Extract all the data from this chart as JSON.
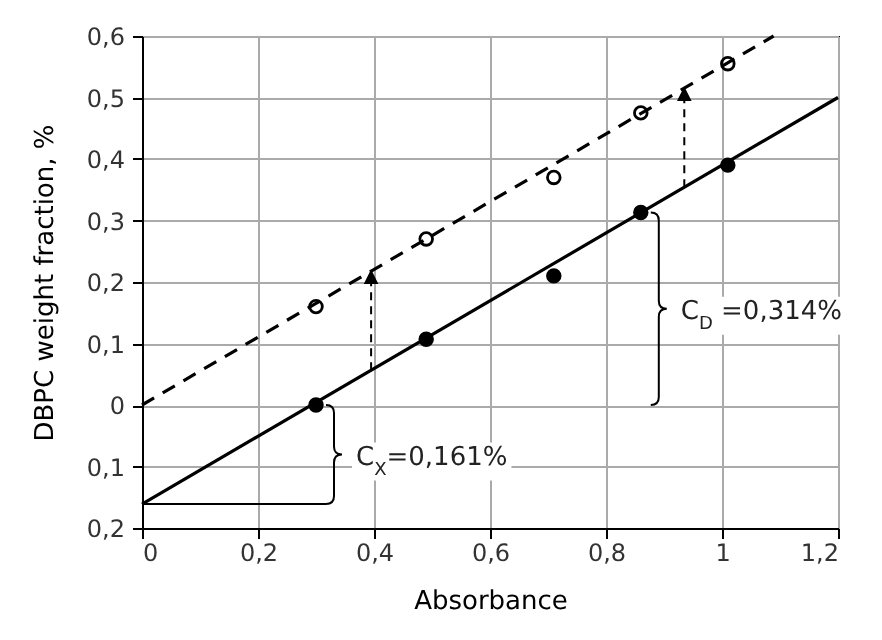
{
  "chart_data": {
    "type": "scatter",
    "xlabel": "Absorbance",
    "ylabel": "DBPC weight fraction, %",
    "series": [
      {
        "type": "scatter",
        "color": "#000000",
        "marker": "circle",
        "x": [
          0.3,
          0.49,
          0.71,
          0.86,
          1.01
        ],
        "values": [
          0.0,
          0.107,
          0.21,
          0.313,
          0.39
        ]
      },
      {
        "type": "scatter",
        "color": "#000000",
        "marker": "circle",
        "x": [
          0.3,
          0.49,
          0.71,
          0.86,
          1.01
        ],
        "values": [
          0.16,
          0.27,
          0.37,
          0.475,
          0.555
        ]
      },
      {
        "type": "line",
        "color": "#000000",
        "line_style": "solid",
        "x": [
          0,
          1.2
        ],
        "values": [
          -0.161,
          0.5
        ]
      },
      {
        "type": "line",
        "color": "#000000",
        "line_style": "dashed",
        "x": [
          0,
          1.089
        ],
        "values": [
          0,
          0.6
        ]
      }
    ],
    "xlim": [
      0,
      1.2
    ],
    "ylim": [
      -0.2,
      0.6
    ],
    "xticks": [
      0,
      {
        "value": 0.2,
        "label": "0,2"
      },
      {
        "value": 0.4,
        "label": "0,4"
      },
      {
        "value": 0.6,
        "label": "0,6"
      },
      {
        "value": 0.8,
        "label": "0,8"
      },
      1,
      {
        "value": 1.2,
        "label": "1,2"
      }
    ],
    "yticks": [
      {
        "value": -0.2,
        "label": "0,2"
      },
      {
        "value": -0.1,
        "label": "0,1"
      },
      0,
      {
        "value": 0.1,
        "label": "0,1"
      },
      {
        "value": 0.2,
        "label": "0,2"
      },
      {
        "value": 0.3,
        "label": "0,3"
      },
      {
        "value": 0.4,
        "label": "0,4"
      },
      {
        "value": 0.5,
        "label": "0,5"
      },
      {
        "value": 0.6,
        "label": "0,6"
      }
    ],
    "annotations": [
      "C$_{X}$=0,161%",
      "C$_{D}$ =0,314%"
    ],
    "grid": true
  }
}
